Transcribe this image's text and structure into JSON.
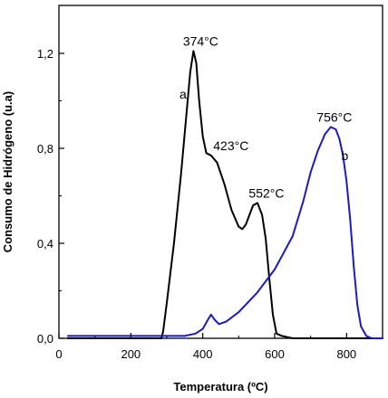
{
  "chart_data": {
    "type": "line",
    "xlabel": "Temperatura (ºC)",
    "ylabel": "Consumo de Hidrógeno (u.a)",
    "xlim": [
      0,
      900
    ],
    "ylim": [
      0,
      1.2
    ],
    "x_ticks": [
      0,
      200,
      400,
      600,
      800
    ],
    "x_tick_labels": [
      "0",
      "200",
      "400",
      "600",
      "800"
    ],
    "y_ticks": [
      0,
      0.4,
      0.8,
      1.2
    ],
    "y_tick_labels": [
      "0,0",
      "0,4",
      "0,8",
      "1,2"
    ],
    "grid": false,
    "colors": {
      "a": "#000000",
      "b": "#1a1ac8"
    },
    "series": [
      {
        "name": "a",
        "x": [
          25,
          100,
          200,
          285,
          290,
          300,
          320,
          340,
          355,
          365,
          374,
          382,
          390,
          400,
          410,
          423,
          440,
          460,
          480,
          500,
          510,
          520,
          530,
          540,
          552,
          565,
          575,
          585,
          595,
          605,
          620,
          650,
          700,
          800,
          900
        ],
        "y": [
          0.0,
          0.0,
          0.0,
          0.0,
          0.03,
          0.15,
          0.4,
          0.7,
          0.95,
          1.12,
          1.21,
          1.16,
          1.0,
          0.85,
          0.78,
          0.77,
          0.74,
          0.65,
          0.54,
          0.47,
          0.46,
          0.48,
          0.52,
          0.56,
          0.57,
          0.52,
          0.42,
          0.25,
          0.1,
          0.02,
          0.01,
          0.0,
          0.0,
          0.0,
          0.0
        ]
      },
      {
        "name": "b",
        "x": [
          25,
          100,
          200,
          300,
          350,
          380,
          400,
          415,
          423,
          432,
          445,
          465,
          500,
          550,
          600,
          650,
          680,
          700,
          720,
          740,
          756,
          770,
          780,
          790,
          800,
          810,
          820,
          830,
          840,
          855,
          870,
          890,
          900
        ],
        "y": [
          0.01,
          0.01,
          0.01,
          0.01,
          0.01,
          0.02,
          0.04,
          0.08,
          0.1,
          0.08,
          0.06,
          0.07,
          0.11,
          0.19,
          0.29,
          0.43,
          0.58,
          0.7,
          0.79,
          0.86,
          0.89,
          0.88,
          0.84,
          0.77,
          0.66,
          0.5,
          0.3,
          0.14,
          0.05,
          0.01,
          0.0,
          0.0,
          0.0
        ]
      }
    ],
    "annotations": [
      {
        "text": "374°C",
        "x": 374,
        "y": 1.21
      },
      {
        "text": "423°C",
        "x": 423,
        "y": 0.77
      },
      {
        "text": "552°C",
        "x": 552,
        "y": 0.57
      },
      {
        "text": "756°C",
        "x": 756,
        "y": 0.89
      },
      {
        "text": "a",
        "x": 345,
        "y": 1.01
      },
      {
        "text": "b",
        "x": 795,
        "y": 0.75
      }
    ]
  }
}
